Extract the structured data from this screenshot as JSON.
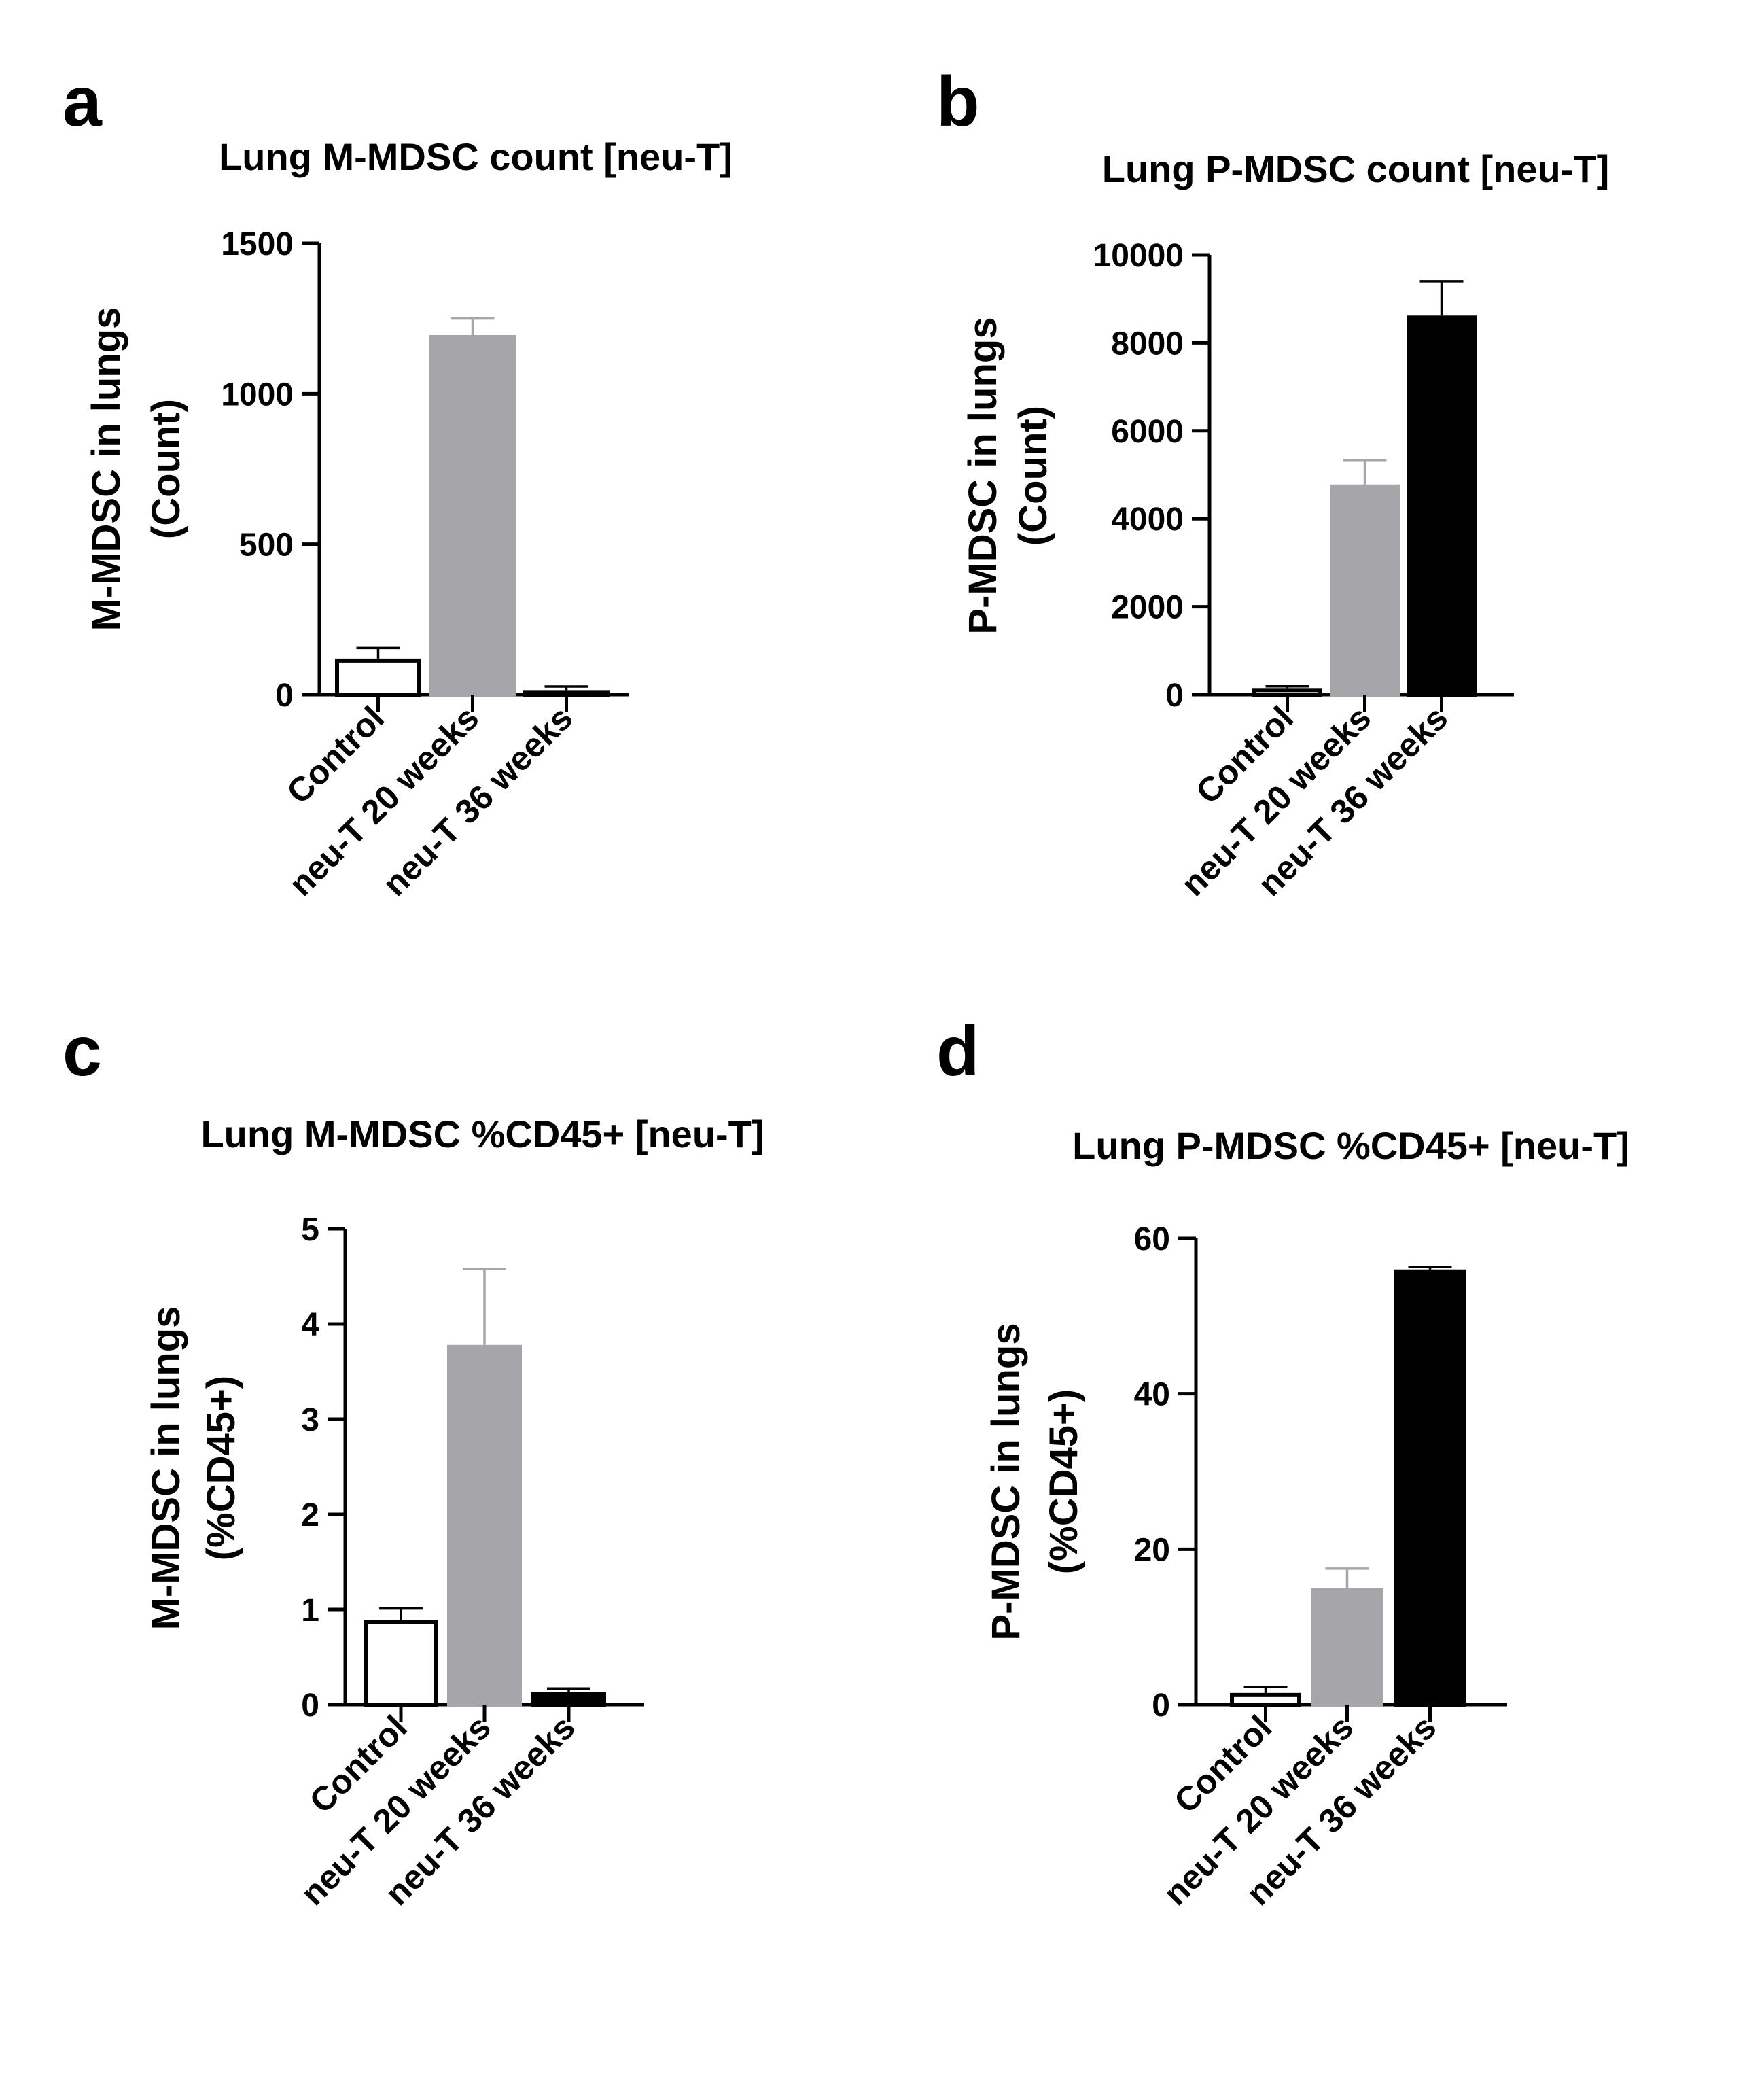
{
  "chart_data": [
    {
      "panel": "a",
      "type": "bar",
      "title": "Lung M-MDSC count [neu-T]",
      "ylabel": [
        "M-MDSC in lungs",
        "(Count)"
      ],
      "categories": [
        "Control",
        "neu-T 20 weeks",
        "neu-T 36 weeks"
      ],
      "values": [
        120,
        1195,
        15
      ],
      "errors": [
        35,
        55,
        12
      ],
      "ylim": [
        0,
        1500
      ],
      "yticks": [
        0,
        500,
        1000,
        1500
      ],
      "colors": [
        "#ffffff",
        "#a6a5aa",
        "#000000"
      ]
    },
    {
      "panel": "b",
      "type": "bar",
      "title": "Lung P-MDSC count [neu-T]",
      "ylabel": [
        "P-MDSC in lungs",
        "(Count)"
      ],
      "categories": [
        "Control",
        "neu-T 20 weeks",
        "neu-T 36 weeks"
      ],
      "values": [
        150,
        4780,
        8620
      ],
      "errors": [
        40,
        540,
        780
      ],
      "ylim": [
        0,
        10000
      ],
      "yticks": [
        0,
        2000,
        4000,
        6000,
        8000,
        10000
      ],
      "colors": [
        "#ffffff",
        "#a6a5aa",
        "#000000"
      ]
    },
    {
      "panel": "c",
      "type": "bar",
      "title": "Lung M-MDSC %CD45+ [neu-T]",
      "ylabel": [
        "M-MDSC in lungs",
        "(%CD45+)"
      ],
      "categories": [
        "Control",
        "neu-T 20 weeks",
        "neu-T 36 weeks"
      ],
      "values": [
        0.89,
        3.78,
        0.13
      ],
      "errors": [
        0.12,
        0.8,
        0.04
      ],
      "ylim": [
        0,
        5
      ],
      "yticks": [
        0,
        1,
        2,
        3,
        4,
        5
      ],
      "colors": [
        "#ffffff",
        "#a6a5aa",
        "#000000"
      ]
    },
    {
      "panel": "d",
      "type": "bar",
      "title": "Lung P-MDSC %CD45+ [neu-T]",
      "ylabel": [
        "P-MDSC in lungs",
        "(%CD45+)"
      ],
      "categories": [
        "Control",
        "neu-T 20 weeks",
        "neu-T 36 weeks"
      ],
      "values": [
        1.5,
        15,
        56
      ],
      "errors": [
        0.8,
        2.5,
        0.3
      ],
      "ylim": [
        0,
        60
      ],
      "yticks": [
        0,
        20,
        40,
        60
      ],
      "colors": [
        "#ffffff",
        "#a6a5aa",
        "#000000"
      ]
    }
  ]
}
